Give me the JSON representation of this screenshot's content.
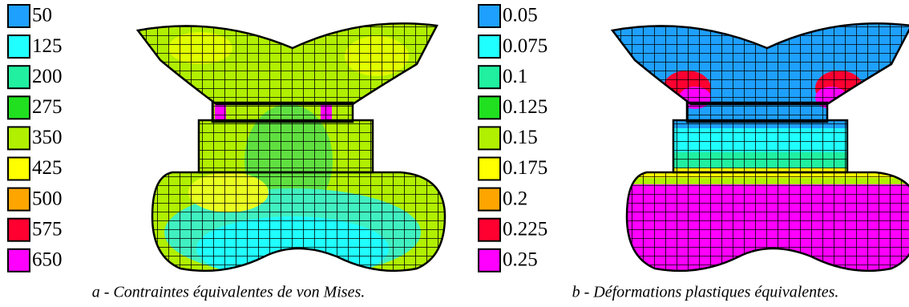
{
  "panels": [
    {
      "legend": [
        {
          "value": 50,
          "color": "#1ea0ff"
        },
        {
          "value": 125,
          "color": "#20ffff"
        },
        {
          "value": 200,
          "color": "#20f0a0"
        },
        {
          "value": 275,
          "color": "#20e020"
        },
        {
          "value": 350,
          "color": "#b0f000"
        },
        {
          "value": 425,
          "color": "#ffff00"
        },
        {
          "value": 500,
          "color": "#ffa500"
        },
        {
          "value": 575,
          "color": "#ff0030"
        },
        {
          "value": 650,
          "color": "#ff00ff"
        }
      ],
      "caption": "a - Contraintes équivalentes de von Mises."
    },
    {
      "legend": [
        {
          "value": 0.05,
          "color": "#1ea0ff"
        },
        {
          "value": 0.075,
          "color": "#20ffff"
        },
        {
          "value": 0.1,
          "color": "#20f0a0"
        },
        {
          "value": 0.125,
          "color": "#20e020"
        },
        {
          "value": 0.15,
          "color": "#b0f000"
        },
        {
          "value": 0.175,
          "color": "#ffff00"
        },
        {
          "value": 0.2,
          "color": "#ffa500"
        },
        {
          "value": 0.225,
          "color": "#ff0030"
        },
        {
          "value": 0.25,
          "color": "#ff00ff"
        }
      ],
      "caption": "b - Déformations plastiques équivalentes."
    }
  ]
}
